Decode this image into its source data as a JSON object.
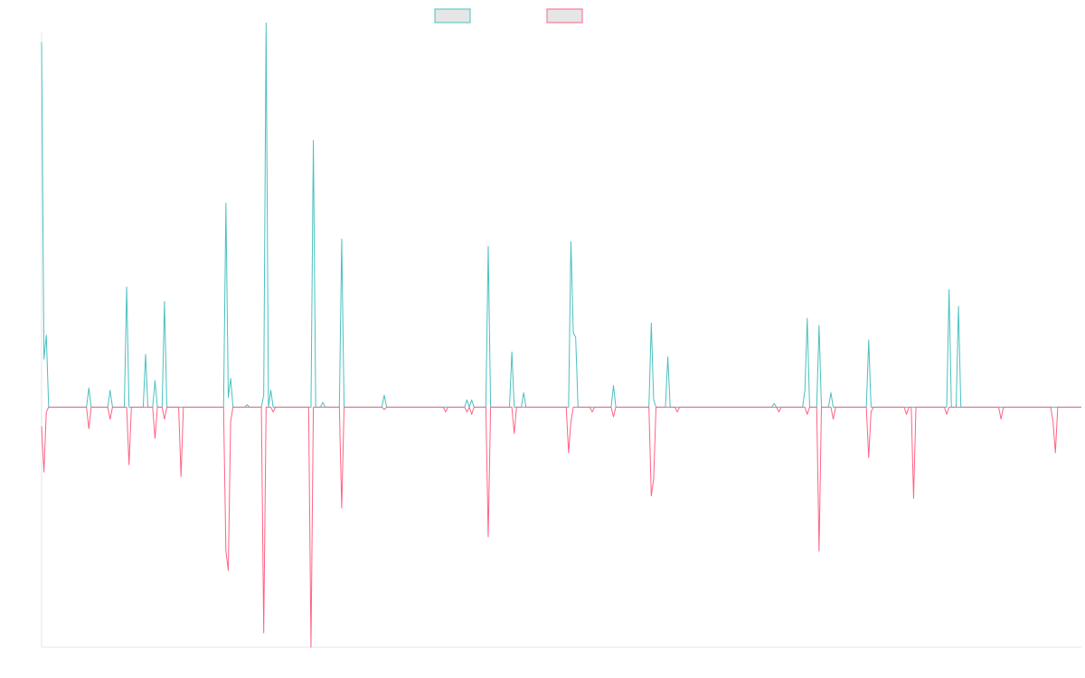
{
  "chart_data": {
    "type": "line",
    "title": "",
    "xlabel": "",
    "ylabel": "",
    "grid": false,
    "legend_position": "top-center",
    "ylim": [
      -1.0,
      1.56
    ],
    "x_count": 440,
    "series": [
      {
        "color": "#4bc0c0",
        "fill_color": "#e6e6e6",
        "points": [
          [
            0,
            1.52
          ],
          [
            1,
            0.2
          ],
          [
            2,
            0.3
          ],
          [
            3,
            0
          ],
          [
            19,
            0
          ],
          [
            20,
            0.08
          ],
          [
            21,
            0
          ],
          [
            28,
            0
          ],
          [
            29,
            0.07
          ],
          [
            30,
            0
          ],
          [
            35,
            0
          ],
          [
            36,
            0.5
          ],
          [
            37,
            0
          ],
          [
            43,
            0
          ],
          [
            44,
            0.22
          ],
          [
            45,
            0
          ],
          [
            47,
            0
          ],
          [
            48,
            0.11
          ],
          [
            49,
            0
          ],
          [
            51,
            0
          ],
          [
            52,
            0.44
          ],
          [
            53,
            0
          ],
          [
            77,
            0
          ],
          [
            78,
            0.85
          ],
          [
            79,
            0.04
          ],
          [
            80,
            0.12
          ],
          [
            81,
            0
          ],
          [
            86,
            0
          ],
          [
            87,
            0.01
          ],
          [
            88,
            0
          ],
          [
            93,
            0
          ],
          [
            94,
            0.05
          ],
          [
            95,
            1.6
          ],
          [
            96,
            0
          ],
          [
            97,
            0.07
          ],
          [
            98,
            0
          ],
          [
            114,
            0
          ],
          [
            115,
            1.11
          ],
          [
            116,
            0
          ],
          [
            118,
            0
          ],
          [
            119,
            0.02
          ],
          [
            120,
            0
          ],
          [
            126,
            0
          ],
          [
            127,
            0.7
          ],
          [
            128,
            0
          ],
          [
            144,
            0
          ],
          [
            145,
            0.05
          ],
          [
            146,
            0
          ],
          [
            179,
            0
          ],
          [
            180,
            0.03
          ],
          [
            181,
            0
          ],
          [
            182,
            0.03
          ],
          [
            183,
            0
          ],
          [
            188,
            0
          ],
          [
            189,
            0.67
          ],
          [
            190,
            0
          ],
          [
            198,
            0
          ],
          [
            199,
            0.23
          ],
          [
            200,
            0
          ],
          [
            203,
            0
          ],
          [
            204,
            0.06
          ],
          [
            205,
            0
          ],
          [
            223,
            0
          ],
          [
            224,
            0.69
          ],
          [
            225,
            0.31
          ],
          [
            226,
            0.29
          ],
          [
            227,
            0
          ],
          [
            241,
            0
          ],
          [
            242,
            0.09
          ],
          [
            243,
            0
          ],
          [
            257,
            0
          ],
          [
            258,
            0.35
          ],
          [
            259,
            0.03
          ],
          [
            260,
            0
          ],
          [
            264,
            0
          ],
          [
            265,
            0.21
          ],
          [
            266,
            0
          ],
          [
            309,
            0
          ],
          [
            310,
            0.015
          ],
          [
            311,
            0
          ],
          [
            322,
            0
          ],
          [
            323,
            0.07
          ],
          [
            324,
            0.37
          ],
          [
            325,
            0
          ],
          [
            328,
            0
          ],
          [
            329,
            0.34
          ],
          [
            330,
            0
          ],
          [
            333,
            0
          ],
          [
            334,
            0.06
          ],
          [
            335,
            0
          ],
          [
            349,
            0
          ],
          [
            350,
            0.28
          ],
          [
            351,
            0
          ],
          [
            383,
            0
          ],
          [
            384,
            0.49
          ],
          [
            385,
            0
          ],
          [
            387,
            0
          ],
          [
            388,
            0.42
          ],
          [
            389,
            0
          ],
          [
            440,
            0
          ]
        ]
      },
      {
        "color": "#ff6384",
        "fill_color": "#e6e6e6",
        "points": [
          [
            0,
            -0.08
          ],
          [
            1,
            -0.27
          ],
          [
            2,
            -0.02
          ],
          [
            3,
            0
          ],
          [
            19,
            0
          ],
          [
            20,
            -0.09
          ],
          [
            21,
            0
          ],
          [
            28,
            0
          ],
          [
            29,
            -0.05
          ],
          [
            30,
            0
          ],
          [
            36,
            0
          ],
          [
            37,
            -0.24
          ],
          [
            38,
            0
          ],
          [
            47,
            0
          ],
          [
            48,
            -0.13
          ],
          [
            49,
            0
          ],
          [
            51,
            0
          ],
          [
            52,
            -0.05
          ],
          [
            53,
            0
          ],
          [
            58,
            0
          ],
          [
            59,
            -0.29
          ],
          [
            60,
            0
          ],
          [
            77,
            0
          ],
          [
            78,
            -0.6
          ],
          [
            79,
            -0.68
          ],
          [
            80,
            -0.06
          ],
          [
            81,
            0
          ],
          [
            93,
            0
          ],
          [
            94,
            -0.94
          ],
          [
            95,
            0
          ],
          [
            97,
            0
          ],
          [
            98,
            -0.02
          ],
          [
            99,
            0
          ],
          [
            113,
            0
          ],
          [
            114,
            -1.0
          ],
          [
            115,
            0
          ],
          [
            126,
            0
          ],
          [
            127,
            -0.42
          ],
          [
            128,
            0
          ],
          [
            144,
            0
          ],
          [
            145,
            -0.01
          ],
          [
            146,
            0
          ],
          [
            170,
            0
          ],
          [
            171,
            -0.02
          ],
          [
            172,
            0
          ],
          [
            179,
            0
          ],
          [
            180,
            -0.02
          ],
          [
            181,
            0
          ],
          [
            182,
            -0.03
          ],
          [
            183,
            0
          ],
          [
            188,
            0
          ],
          [
            189,
            -0.54
          ],
          [
            190,
            0
          ],
          [
            199,
            0
          ],
          [
            200,
            -0.11
          ],
          [
            201,
            0
          ],
          [
            222,
            0
          ],
          [
            223,
            -0.19
          ],
          [
            224,
            -0.06
          ],
          [
            225,
            0
          ],
          [
            232,
            0
          ],
          [
            233,
            -0.02
          ],
          [
            234,
            0
          ],
          [
            241,
            0
          ],
          [
            242,
            -0.04
          ],
          [
            243,
            0
          ],
          [
            257,
            0
          ],
          [
            258,
            -0.37
          ],
          [
            259,
            -0.3
          ],
          [
            260,
            0
          ],
          [
            268,
            0
          ],
          [
            269,
            -0.02
          ],
          [
            270,
            0
          ],
          [
            311,
            0
          ],
          [
            312,
            -0.02
          ],
          [
            313,
            0
          ],
          [
            323,
            0
          ],
          [
            324,
            -0.03
          ],
          [
            325,
            0
          ],
          [
            328,
            0
          ],
          [
            329,
            -0.6
          ],
          [
            330,
            0
          ],
          [
            334,
            0
          ],
          [
            335,
            -0.05
          ],
          [
            336,
            0
          ],
          [
            349,
            0
          ],
          [
            350,
            -0.21
          ],
          [
            351,
            -0.02
          ],
          [
            352,
            0
          ],
          [
            365,
            0
          ],
          [
            366,
            -0.03
          ],
          [
            367,
            0
          ],
          [
            368,
            0
          ],
          [
            369,
            -0.38
          ],
          [
            370,
            0
          ],
          [
            382,
            0
          ],
          [
            383,
            -0.03
          ],
          [
            384,
            0
          ],
          [
            405,
            0
          ],
          [
            406,
            -0.05
          ],
          [
            407,
            0
          ],
          [
            427,
            0
          ],
          [
            428,
            -0.06
          ],
          [
            429,
            -0.19
          ],
          [
            430,
            0
          ],
          [
            440,
            0
          ]
        ]
      }
    ]
  }
}
